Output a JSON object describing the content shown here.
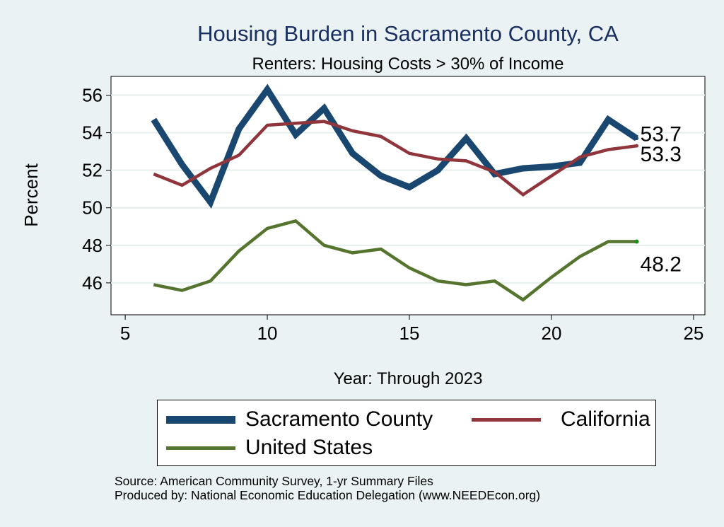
{
  "chart_data": {
    "type": "line",
    "title": "Housing Burden in Sacramento County, CA",
    "subtitle": "Renters: Housing Costs > 30% of Income",
    "xlabel": "Year: Through 2023",
    "ylabel": "Percent",
    "xlim": [
      4.5,
      25.4
    ],
    "ylim": [
      44.3,
      57
    ],
    "xticks": [
      5,
      10,
      15,
      20,
      25
    ],
    "yticks": [
      46,
      48,
      50,
      52,
      54,
      56
    ],
    "x": [
      6,
      7,
      8,
      9,
      10,
      11,
      12,
      13,
      14,
      15,
      16,
      17,
      18,
      19,
      20,
      21,
      22,
      23
    ],
    "series": [
      {
        "name": "Sacramento County",
        "color": "#1a476f",
        "values": [
          54.7,
          52.3,
          50.3,
          54.2,
          56.3,
          53.9,
          55.3,
          52.9,
          51.7,
          51.1,
          52.0,
          53.7,
          51.8,
          52.1,
          52.2,
          52.4,
          54.7,
          53.7
        ],
        "end_label": "53.7"
      },
      {
        "name": "California",
        "color": "#90353b",
        "values": [
          51.8,
          51.2,
          52.1,
          52.8,
          54.4,
          54.5,
          54.6,
          54.1,
          53.8,
          52.9,
          52.6,
          52.5,
          51.9,
          50.7,
          51.7,
          52.7,
          53.1,
          53.3
        ],
        "end_label": "53.3"
      },
      {
        "name": "United States",
        "color": "#55752f",
        "values": [
          45.9,
          45.6,
          46.1,
          47.7,
          48.9,
          49.3,
          48.0,
          47.6,
          47.8,
          46.8,
          46.1,
          45.9,
          46.1,
          45.1,
          46.3,
          47.4,
          48.2,
          48.2
        ],
        "end_label": "48.2"
      }
    ],
    "legend": [
      "Sacramento County",
      "California",
      "United States"
    ],
    "source_lines": [
      "Source: American Community Survey, 1-yr Summary Files",
      "Produced by: National Economic Education Delegation (www.NEEDEcon.org)"
    ]
  }
}
